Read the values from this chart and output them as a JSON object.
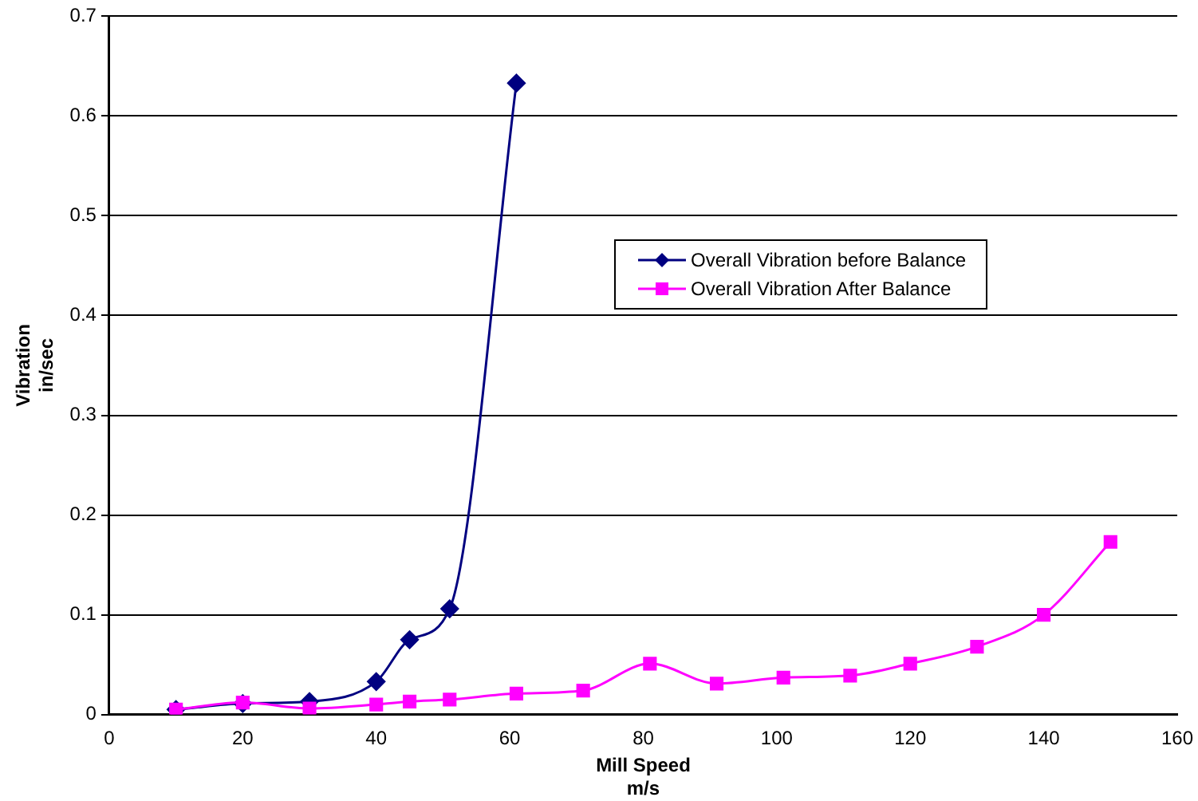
{
  "chart_data": {
    "type": "line",
    "xlabel": "Mill Speed\nm/s",
    "ylabel": "Vibration\nin/sec",
    "xlim": [
      0,
      160
    ],
    "xticks": [
      0,
      20,
      40,
      60,
      80,
      100,
      120,
      140,
      160
    ],
    "ylim": [
      0,
      0.7
    ],
    "yticks": [
      0,
      0.1,
      0.2,
      0.3,
      0.4,
      0.5,
      0.6,
      0.7
    ],
    "grid": "y",
    "legend": "right",
    "series": [
      {
        "name": "Overall Vibration before Balance",
        "color": "#000080",
        "marker": "diamond",
        "x": [
          10,
          20,
          30,
          40,
          45,
          51,
          61
        ],
        "values": [
          0.005,
          0.011,
          0.013,
          0.033,
          0.075,
          0.106,
          0.633
        ]
      },
      {
        "name": "Overall Vibration After Balance",
        "color": "#ff00ff",
        "marker": "square",
        "x": [
          10,
          20,
          30,
          40,
          45,
          51,
          61,
          71,
          81,
          91,
          101,
          111,
          120,
          130,
          140,
          150
        ],
        "values": [
          0.005,
          0.012,
          0.006,
          0.01,
          0.013,
          0.015,
          0.021,
          0.024,
          0.051,
          0.031,
          0.037,
          0.039,
          0.051,
          0.068,
          0.1,
          0.173
        ]
      }
    ]
  }
}
